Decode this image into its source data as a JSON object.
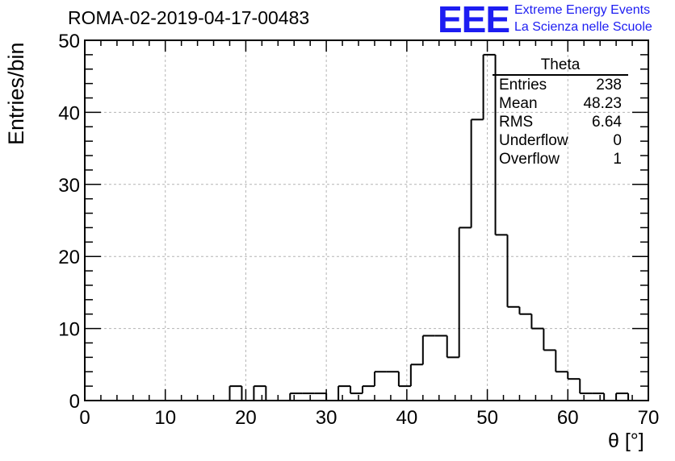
{
  "title": "ROMA-02-2019-04-17-00483",
  "logo": {
    "mark": "EEE",
    "line1": "Extreme Energy Events",
    "line2": "La Scienza nelle Scuole",
    "color": "#1d1df2"
  },
  "stats_box": {
    "title": "Theta",
    "rows": [
      {
        "label": "Entries",
        "value": "238"
      },
      {
        "label": "Mean",
        "value": "48.23"
      },
      {
        "label": "RMS",
        "value": "6.64"
      },
      {
        "label": "Underflow",
        "value": "0"
      },
      {
        "label": "Overflow",
        "value": "1"
      }
    ]
  },
  "chart_data": {
    "type": "bar",
    "style": "step-histogram",
    "xlabel": "θ [°]",
    "ylabel": "Entries/bin",
    "xlim": [
      0,
      70
    ],
    "ylim": [
      0,
      50
    ],
    "bin_width": 1.5,
    "bin_edges_start": 0,
    "values": [
      0,
      0,
      0,
      0,
      0,
      0,
      0,
      0,
      0,
      0,
      0,
      0,
      2,
      0,
      2,
      0,
      0,
      1,
      1,
      1,
      0,
      2,
      1,
      2,
      4,
      4,
      2,
      5,
      9,
      9,
      6,
      24,
      39,
      48,
      23,
      13,
      12,
      10,
      7,
      4,
      3,
      1,
      1,
      0,
      1,
      0,
      0
    ],
    "xticks": [
      0,
      10,
      20,
      30,
      40,
      50,
      60,
      70
    ],
    "yticks": [
      0,
      10,
      20,
      30,
      40,
      50
    ],
    "grid": true,
    "line_color": "#000000",
    "grid_color": "#b4b4b4"
  }
}
